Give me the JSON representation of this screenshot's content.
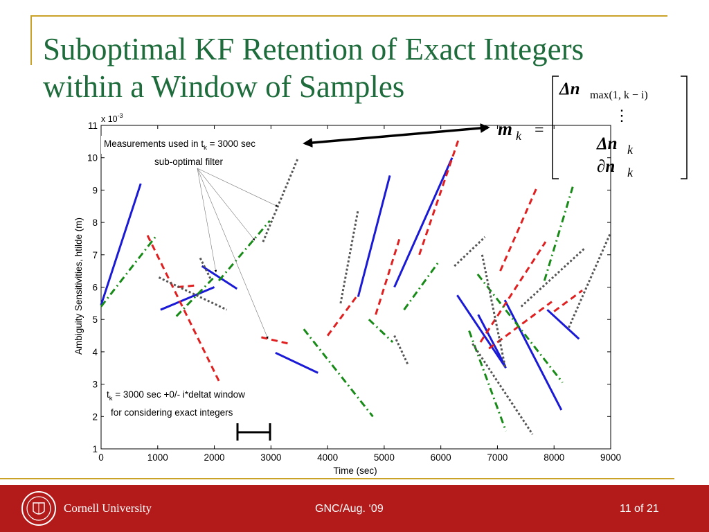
{
  "slide": {
    "title_line1": "Suboptimal KF Retention of Exact Integers",
    "title_line2": "within a Window of Samples"
  },
  "equation": {
    "lhs": "m",
    "lhs_sub": "k",
    "equals": "=",
    "row1": "Δn",
    "row1_sub": "max(1, k − i)",
    "row2": "⋮",
    "row3": "Δn",
    "row3_sub": "k",
    "row4": "∂n",
    "row4_sub": "k"
  },
  "footer": {
    "university": "Cornell University",
    "event": "GNC/Aug. ‘09",
    "page": "11 of 21"
  },
  "chart_data": {
    "type": "line",
    "xlabel": "Time (sec)",
    "ylabel": "Ambiguity Sensitivities, htilde (m)",
    "y_multiplier": "x 10",
    "y_multiplier_exp": "-3",
    "xlim": [
      0,
      9000
    ],
    "ylim": [
      1,
      11
    ],
    "xticks": [
      0,
      1000,
      2000,
      3000,
      4000,
      5000,
      6000,
      7000,
      8000,
      9000
    ],
    "yticks": [
      1,
      2,
      3,
      4,
      5,
      6,
      7,
      8,
      9,
      10,
      11
    ],
    "grid": false,
    "annotations": {
      "measurements": "Measurements used in t",
      "measurements_sub": "k",
      "measurements_rest": " = 3000 sec",
      "filter": "sub-optimal filter",
      "window_t": "t",
      "window_sub": "k",
      "window_rest": " = 3000 sec +0/- i*deltat window",
      "window_line2": "for considering exact integers"
    },
    "styles": {
      "blue": {
        "color": "#1a1ad6",
        "dash": ""
      },
      "red": {
        "color": "#e02020",
        "dash": "9,6"
      },
      "green": {
        "color": "#178a17",
        "dash": "10,5,2,5"
      },
      "gray": {
        "color": "#555555",
        "dash": "3,3"
      }
    },
    "segments": [
      {
        "style": "blue",
        "x": [
          0,
          700
        ],
        "y": [
          5.45,
          9.2
        ]
      },
      {
        "style": "blue",
        "x": [
          1050,
          2000
        ],
        "y": [
          5.3,
          6.0
        ]
      },
      {
        "style": "blue",
        "x": [
          1780,
          2400
        ],
        "y": [
          6.65,
          5.95
        ]
      },
      {
        "style": "blue",
        "x": [
          3080,
          3830
        ],
        "y": [
          3.97,
          3.35
        ]
      },
      {
        "style": "blue",
        "x": [
          4540,
          5100
        ],
        "y": [
          5.7,
          9.45
        ]
      },
      {
        "style": "blue",
        "x": [
          5180,
          6200
        ],
        "y": [
          6.0,
          10.0
        ]
      },
      {
        "style": "blue",
        "x": [
          6290,
          7150
        ],
        "y": [
          5.75,
          3.5
        ]
      },
      {
        "style": "blue",
        "x": [
          6660,
          7140
        ],
        "y": [
          5.15,
          3.55
        ]
      },
      {
        "style": "blue",
        "x": [
          7130,
          8130
        ],
        "y": [
          5.6,
          2.2
        ]
      },
      {
        "style": "blue",
        "x": [
          7880,
          8440
        ],
        "y": [
          5.3,
          4.4
        ]
      },
      {
        "style": "red",
        "x": [
          820,
          2080
        ],
        "y": [
          7.6,
          3.1
        ]
      },
      {
        "style": "red",
        "x": [
          1350,
          1650
        ],
        "y": [
          6.0,
          6.05
        ]
      },
      {
        "style": "red",
        "x": [
          2830,
          3320
        ],
        "y": [
          4.45,
          4.25
        ]
      },
      {
        "style": "red",
        "x": [
          4000,
          4550
        ],
        "y": [
          4.5,
          5.8
        ]
      },
      {
        "style": "red",
        "x": [
          4850,
          5280
        ],
        "y": [
          5.15,
          7.55
        ]
      },
      {
        "style": "red",
        "x": [
          5620,
          6320
        ],
        "y": [
          7.0,
          10.6
        ]
      },
      {
        "style": "red",
        "x": [
          6700,
          7850
        ],
        "y": [
          4.3,
          7.4
        ]
      },
      {
        "style": "red",
        "x": [
          6850,
          7960
        ],
        "y": [
          4.1,
          5.55
        ]
      },
      {
        "style": "red",
        "x": [
          7050,
          7700
        ],
        "y": [
          6.5,
          9.1
        ]
      },
      {
        "style": "red",
        "x": [
          8000,
          8500
        ],
        "y": [
          5.25,
          5.9
        ]
      },
      {
        "style": "green",
        "x": [
          0,
          980
        ],
        "y": [
          5.4,
          7.6
        ]
      },
      {
        "style": "green",
        "x": [
          1330,
          2020
        ],
        "y": [
          5.1,
          6.35
        ]
      },
      {
        "style": "green",
        "x": [
          2080,
          2980
        ],
        "y": [
          6.2,
          8.05
        ]
      },
      {
        "style": "green",
        "x": [
          3580,
          4800
        ],
        "y": [
          4.7,
          2.0
        ]
      },
      {
        "style": "green",
        "x": [
          4730,
          5150
        ],
        "y": [
          5.0,
          4.3
        ]
      },
      {
        "style": "green",
        "x": [
          5350,
          5950
        ],
        "y": [
          5.3,
          6.75
        ]
      },
      {
        "style": "green",
        "x": [
          6500,
          7150
        ],
        "y": [
          4.65,
          1.55
        ]
      },
      {
        "style": "green",
        "x": [
          6650,
          8150
        ],
        "y": [
          6.4,
          3.05
        ]
      },
      {
        "style": "green",
        "x": [
          7830,
          8330
        ],
        "y": [
          6.2,
          9.1
        ]
      },
      {
        "style": "gray",
        "x": [
          1020,
          2220
        ],
        "y": [
          6.3,
          5.3
        ]
      },
      {
        "style": "gray",
        "x": [
          1750,
          1950
        ],
        "y": [
          6.9,
          6.2
        ]
      },
      {
        "style": "gray",
        "x": [
          2860,
          3480
        ],
        "y": [
          7.4,
          10.0
        ]
      },
      {
        "style": "gray",
        "x": [
          4230,
          4540
        ],
        "y": [
          5.5,
          8.4
        ]
      },
      {
        "style": "gray",
        "x": [
          5180,
          5420
        ],
        "y": [
          4.5,
          3.6
        ]
      },
      {
        "style": "gray",
        "x": [
          6240,
          6780
        ],
        "y": [
          6.65,
          7.55
        ]
      },
      {
        "style": "gray",
        "x": [
          6730,
          7140
        ],
        "y": [
          7.0,
          3.5
        ]
      },
      {
        "style": "gray",
        "x": [
          6560,
          7620
        ],
        "y": [
          4.25,
          1.45
        ]
      },
      {
        "style": "gray",
        "x": [
          7420,
          8540
        ],
        "y": [
          5.4,
          7.2
        ]
      },
      {
        "style": "gray",
        "x": [
          8260,
          8990
        ],
        "y": [
          4.75,
          7.65
        ]
      }
    ]
  }
}
